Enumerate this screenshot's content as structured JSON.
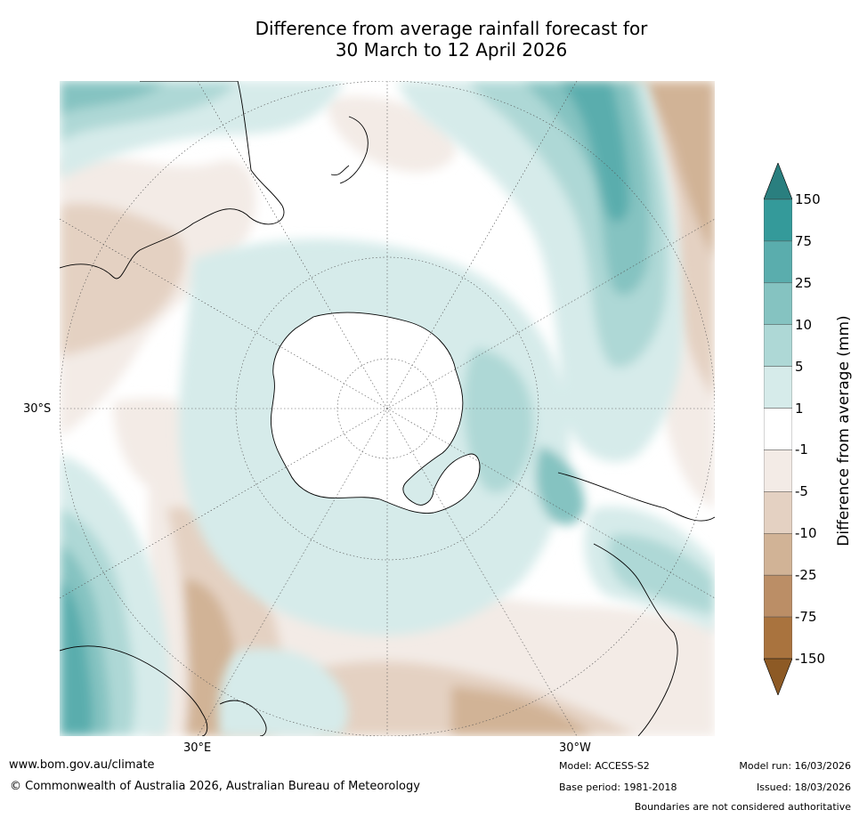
{
  "title_line1": "Difference from average rainfall forecast for",
  "title_line2": "30 March to 12 April 2026",
  "map": {
    "projection": "South polar stereographic",
    "lat_label": "30°S",
    "lon_labels": {
      "east": "30°E",
      "west": "30°W"
    }
  },
  "colorbar": {
    "title": "Difference from average (mm)",
    "ticks": [
      "150",
      "75",
      "25",
      "10",
      "5",
      "1",
      "-1",
      "-5",
      "-10",
      "-25",
      "-75",
      "-150"
    ],
    "colors": {
      "above_150": "#2a7f7f",
      "75_150": "#349a9a",
      "25_75": "#5aadad",
      "10_25": "#85c3c1",
      "5_10": "#aed8d6",
      "1_5": "#d6ebea",
      "m1_1": "#ffffff",
      "m5_m1": "#f3ebe6",
      "m10_m5": "#e4d1c2",
      "m25_m10": "#d1b396",
      "m75_m25": "#bb8e66",
      "m150_m75": "#a9733e",
      "below_m150": "#8d5a25"
    }
  },
  "footer": {
    "website": "www.bom.gov.au/climate",
    "copyright": "© Commonwealth of Australia 2026, Australian Bureau of Meteorology",
    "model": "Model: ACCESS-S2",
    "base_period": "Base period: 1981-2018",
    "model_run": "Model run: 16/03/2026",
    "issued": "Issued: 18/03/2026",
    "disclaimer": "Boundaries are not considered authoritative"
  }
}
